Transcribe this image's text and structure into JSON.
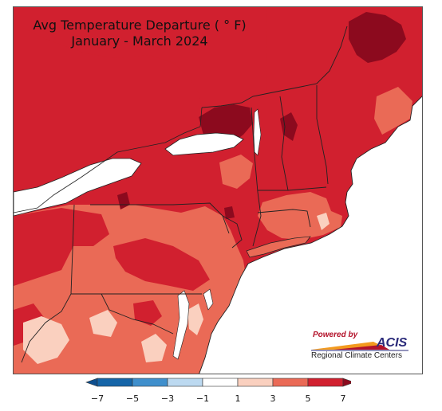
{
  "title": {
    "line1": "Avg Temperature Departure ( ° F)",
    "line2": "January - March 2024"
  },
  "colors": {
    "water": "#ffffff",
    "state_border": "#222222",
    "bins": {
      "lt_-5": "#1565a8",
      "-5_-3": "#3f8fcc",
      "-3_-1": "#bcd9f0",
      "-1_1": "#ffffff",
      "1_3": "#fad0bf",
      "3_5": "#ea6a56",
      "5_7": "#d1202f",
      "gt_7": "#8c0a1e"
    }
  },
  "legend": {
    "tick_labels": [
      "−7",
      "−5",
      "−3",
      "−1",
      "1",
      "3",
      "5",
      "7"
    ],
    "bin_colors": [
      "#1565a8",
      "#3f8fcc",
      "#bcd9f0",
      "#ffffff",
      "#fad0bf",
      "#ea6a56",
      "#d1202f"
    ],
    "under_color": "#0d4f8f",
    "over_color": "#8c0a1e"
  },
  "logo": {
    "powered_by": "Powered by",
    "brand": "ACIS",
    "subtitle": "Regional Climate Centers"
  }
}
